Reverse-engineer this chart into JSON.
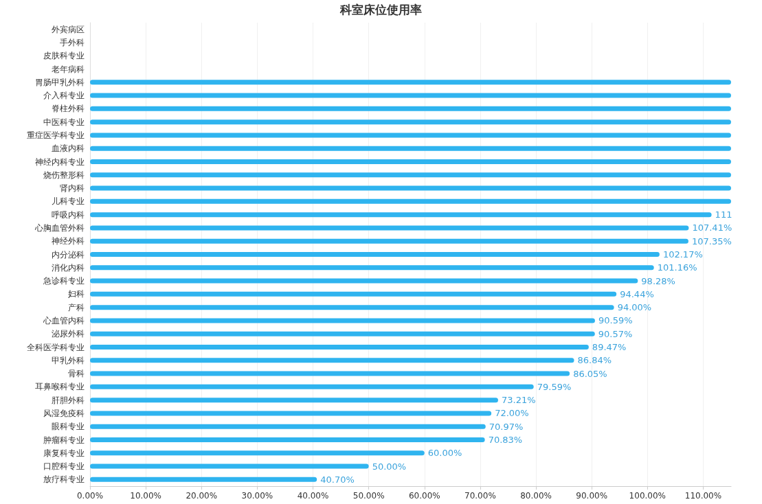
{
  "chart_data": {
    "type": "bar",
    "orientation": "horizontal",
    "title": "科室床位使用率",
    "categories": [
      "外宾病区",
      "手外科",
      "皮肤科专业",
      "老年病科",
      "胃肠甲乳外科",
      "介入科专业",
      "脊柱外科",
      "中医科专业",
      "重症医学科专业",
      "血液内科",
      "神经内科专业",
      "烧伤整形科",
      "肾内科",
      "儿科专业",
      "呼吸内科",
      "心胸血管外科",
      "神经外科",
      "内分泌科",
      "消化内科",
      "急诊科专业",
      "妇科",
      "产科",
      "心血管内科",
      "泌尿外科",
      "全科医学科专业",
      "甲乳外科",
      "骨科",
      "耳鼻喉科专业",
      "肝胆外科",
      "风湿免疫科",
      "眼科专业",
      "肿瘤科专业",
      "康复科专业",
      "口腔科专业",
      "放疗科专业"
    ],
    "values": [
      null,
      null,
      null,
      null,
      115,
      115,
      115,
      115,
      115,
      115,
      115,
      115,
      115,
      115,
      111.5,
      107.41,
      107.35,
      102.17,
      101.16,
      98.28,
      94.44,
      94.0,
      90.59,
      90.57,
      89.47,
      86.84,
      86.05,
      79.59,
      73.21,
      72.0,
      70.97,
      70.83,
      60.0,
      50.0,
      40.7
    ],
    "value_labels": [
      null,
      null,
      null,
      null,
      null,
      null,
      null,
      null,
      null,
      null,
      null,
      null,
      null,
      null,
      "111",
      "107.41%",
      "107.35%",
      "102.17%",
      "101.16%",
      "98.28%",
      "94.44%",
      "94.00%",
      "90.59%",
      "90.57%",
      "89.47%",
      "86.84%",
      "86.05%",
      "79.59%",
      "73.21%",
      "72.00%",
      "70.97%",
      "70.83%",
      "60.00%",
      "50.00%",
      "40.70%"
    ],
    "color": "#2fb4ef",
    "xlim": [
      0,
      115
    ],
    "xticks": [
      {
        "value": 0,
        "label": "0.00%"
      },
      {
        "value": 10,
        "label": "10.00%"
      },
      {
        "value": 20,
        "label": "20.00%"
      },
      {
        "value": 30,
        "label": "30.00%"
      },
      {
        "value": 40,
        "label": "40.00%"
      },
      {
        "value": 50,
        "label": "50.00%"
      },
      {
        "value": 60,
        "label": "60.00%"
      },
      {
        "value": 70,
        "label": "70.00%"
      },
      {
        "value": 80,
        "label": "80.00%"
      },
      {
        "value": 90,
        "label": "90.00%"
      },
      {
        "value": 100,
        "label": "100.00%"
      },
      {
        "value": 110,
        "label": "110.00%"
      }
    ],
    "grid": "x"
  }
}
